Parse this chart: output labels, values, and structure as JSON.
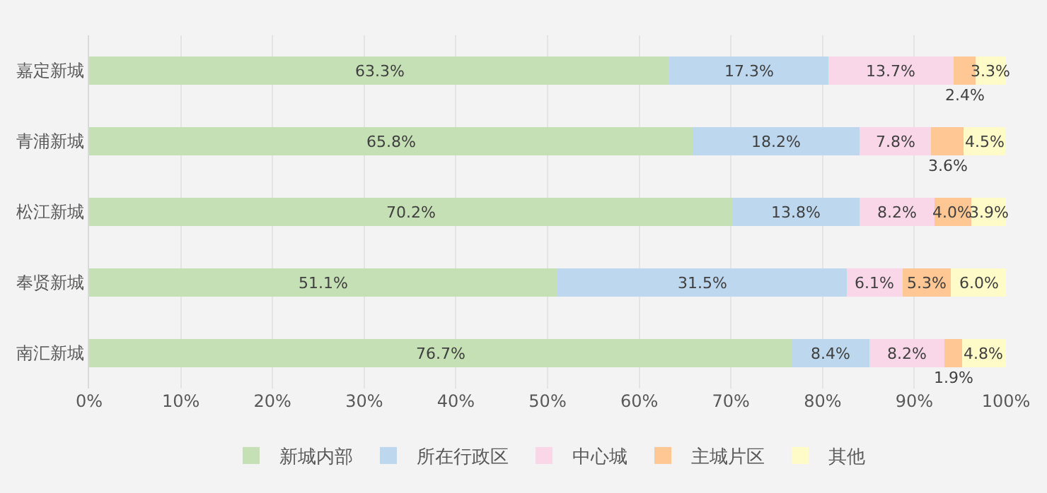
{
  "chart_data": {
    "type": "bar",
    "orientation": "horizontal",
    "stacked": true,
    "categories": [
      "嘉定新城",
      "青浦新城",
      "松江新城",
      "奉贤新城",
      "南汇新城"
    ],
    "series": [
      {
        "name": "新城内部",
        "color": "#c5e0b4",
        "values": [
          63.3,
          65.8,
          70.2,
          51.1,
          76.7
        ],
        "value_labels": [
          "63.3%",
          "65.8%",
          "70.2%",
          "51.1%",
          "76.7%"
        ]
      },
      {
        "name": "所在行政区",
        "color": "#bdd7ee",
        "values": [
          17.3,
          18.2,
          13.8,
          31.5,
          8.4
        ],
        "value_labels": [
          "17.3%",
          "18.2%",
          "13.8%",
          "31.5%",
          "8.4%"
        ]
      },
      {
        "name": "中心城",
        "color": "#fad7e8",
        "values": [
          13.7,
          7.8,
          8.2,
          6.1,
          8.2
        ],
        "value_labels": [
          "13.7%",
          "7.8%",
          "8.2%",
          "6.1%",
          "8.2%"
        ]
      },
      {
        "name": "主城片区",
        "color": "#fec794",
        "values": [
          2.4,
          3.6,
          4.0,
          5.3,
          1.9
        ],
        "value_labels": [
          "2.4%",
          "3.6%",
          "4.0%",
          "5.3%",
          "1.9%"
        ]
      },
      {
        "name": "其他",
        "color": "#fffbc9",
        "values": [
          3.3,
          4.5,
          3.9,
          6.0,
          4.8
        ],
        "value_labels": [
          "3.3%",
          "4.5%",
          "3.9%",
          "6.0%",
          "4.8%"
        ]
      }
    ],
    "xlim": [
      0,
      100
    ],
    "xticks": [
      {
        "value": 0,
        "label": "0%"
      },
      {
        "value": 10,
        "label": "10%"
      },
      {
        "value": 20,
        "label": "20%"
      },
      {
        "value": 30,
        "label": "30%"
      },
      {
        "value": 40,
        "label": "40%"
      },
      {
        "value": 50,
        "label": "50%"
      },
      {
        "value": 60,
        "label": "60%"
      },
      {
        "value": 70,
        "label": "70%"
      },
      {
        "value": 80,
        "label": "80%"
      },
      {
        "value": 90,
        "label": "90%"
      },
      {
        "value": 100,
        "label": "100%"
      }
    ],
    "grid": "x",
    "legend": "bottom"
  }
}
